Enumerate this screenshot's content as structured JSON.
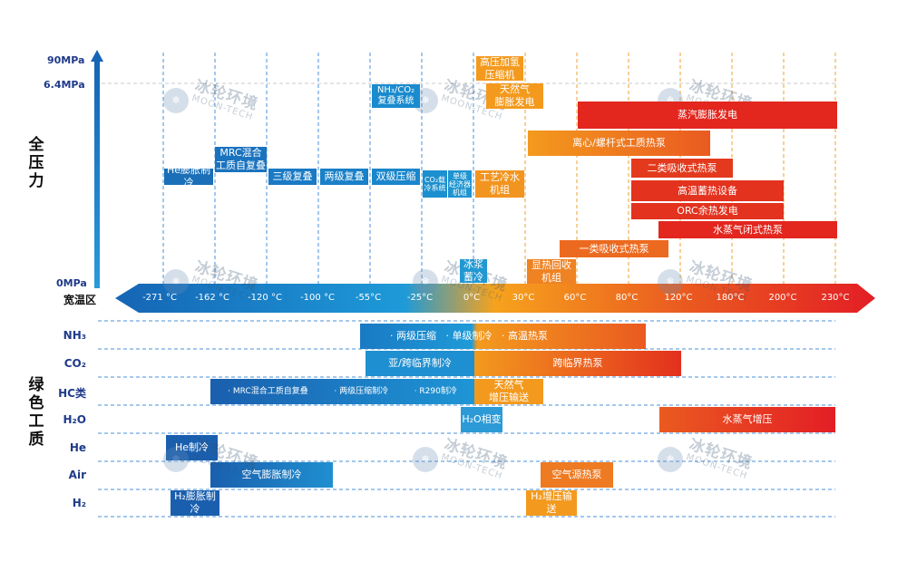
{
  "labels": {
    "pressure_group": "全\n压\n力",
    "gas_group": "绿\n色\n工\n质",
    "temp_axis": "宽温区"
  },
  "pressure_ticks": [
    "90MPa",
    "6.4MPa",
    "0MPa"
  ],
  "temp_ticks": [
    "-271 °C",
    "-162 °C",
    "-120 °C",
    "-100 °C",
    "-55°C",
    "-25°C",
    "0°C",
    "30°C",
    "60°C",
    "80°C",
    "120°C",
    "180°C",
    "200°C",
    "230°C"
  ],
  "apps": [
    {
      "text": "He膨胀制冷",
      "color": "#1a6fb8"
    },
    {
      "text": "MRC混合\n工质自复叠",
      "color": "#1a73bf"
    },
    {
      "text": "三级复叠",
      "color": "#1a7ac4"
    },
    {
      "text": "两级复叠",
      "color": "#1a80c8"
    },
    {
      "text": "双级压缩",
      "color": "#1a86cb"
    },
    {
      "text": "NH₃/CO₂\n复叠系统",
      "color": "#1a8bce"
    },
    {
      "text": "CO₂载\n冷系统",
      "color": "#1c90cf"
    },
    {
      "text": "单级\n经济器\n机组",
      "color": "#1e94d0"
    },
    {
      "text": "冰浆\n蓄冷",
      "color": "#2298d2"
    },
    {
      "text": "高压加氢\n压缩机",
      "color": "#f39a1e"
    },
    {
      "text": "天然气\n膨胀发电",
      "color": "#f39a1e"
    },
    {
      "text": "工艺冷水\n机组",
      "color": "#f29520"
    },
    {
      "text": "显热回收\n机组",
      "color": "#ef8222"
    },
    {
      "text": "蒸汽膨胀发电",
      "color": "#e3261e"
    },
    {
      "text": "离心/螺杆式工质热泵",
      "color": "#ee7a22"
    },
    {
      "text": "二类吸收式热泵",
      "color": "#e33a1e"
    },
    {
      "text": "高温蓄热设备",
      "color": "#e3321e"
    },
    {
      "text": "ORC余热发电",
      "color": "#e3321e"
    },
    {
      "text": "水蒸气闭式热泵",
      "color": "#e3261e"
    },
    {
      "text": "一类吸收式热泵",
      "color": "#ec6a20"
    }
  ],
  "gases": [
    {
      "name": "NH₃"
    },
    {
      "name": "CO₂"
    },
    {
      "name": "HC类"
    },
    {
      "name": "H₂O"
    },
    {
      "name": "He"
    },
    {
      "name": "Air"
    },
    {
      "name": "H₂"
    }
  ],
  "gas_apps": [
    {
      "text": "· 两级压缩   · 单级制冷   · 高温热泵"
    },
    {
      "text": "亚/跨临界制冷"
    },
    {
      "text": "跨临界热泵"
    },
    {
      "text": "· MRC混合工质自复叠          · 两级压缩制冷          · R290制冷"
    },
    {
      "text": "天然气\n增压输送"
    },
    {
      "text": "H₂O相变"
    },
    {
      "text": "水蒸气增压"
    },
    {
      "text": "He制冷"
    },
    {
      "text": "空气膨胀制冷"
    },
    {
      "text": "空气源热泵"
    },
    {
      "text": "H₂膨胀制冷"
    },
    {
      "text": "H₂增压输送"
    }
  ],
  "watermark": {
    "cn": "冰轮环境",
    "en": "MOON-TECH",
    "logo_icon": "moon-tech-logo-icon"
  },
  "colors": {
    "cold": "#1a6fb8",
    "warm": "#f39a1e",
    "hot": "#e3261e",
    "grid": "#4a90d9"
  }
}
